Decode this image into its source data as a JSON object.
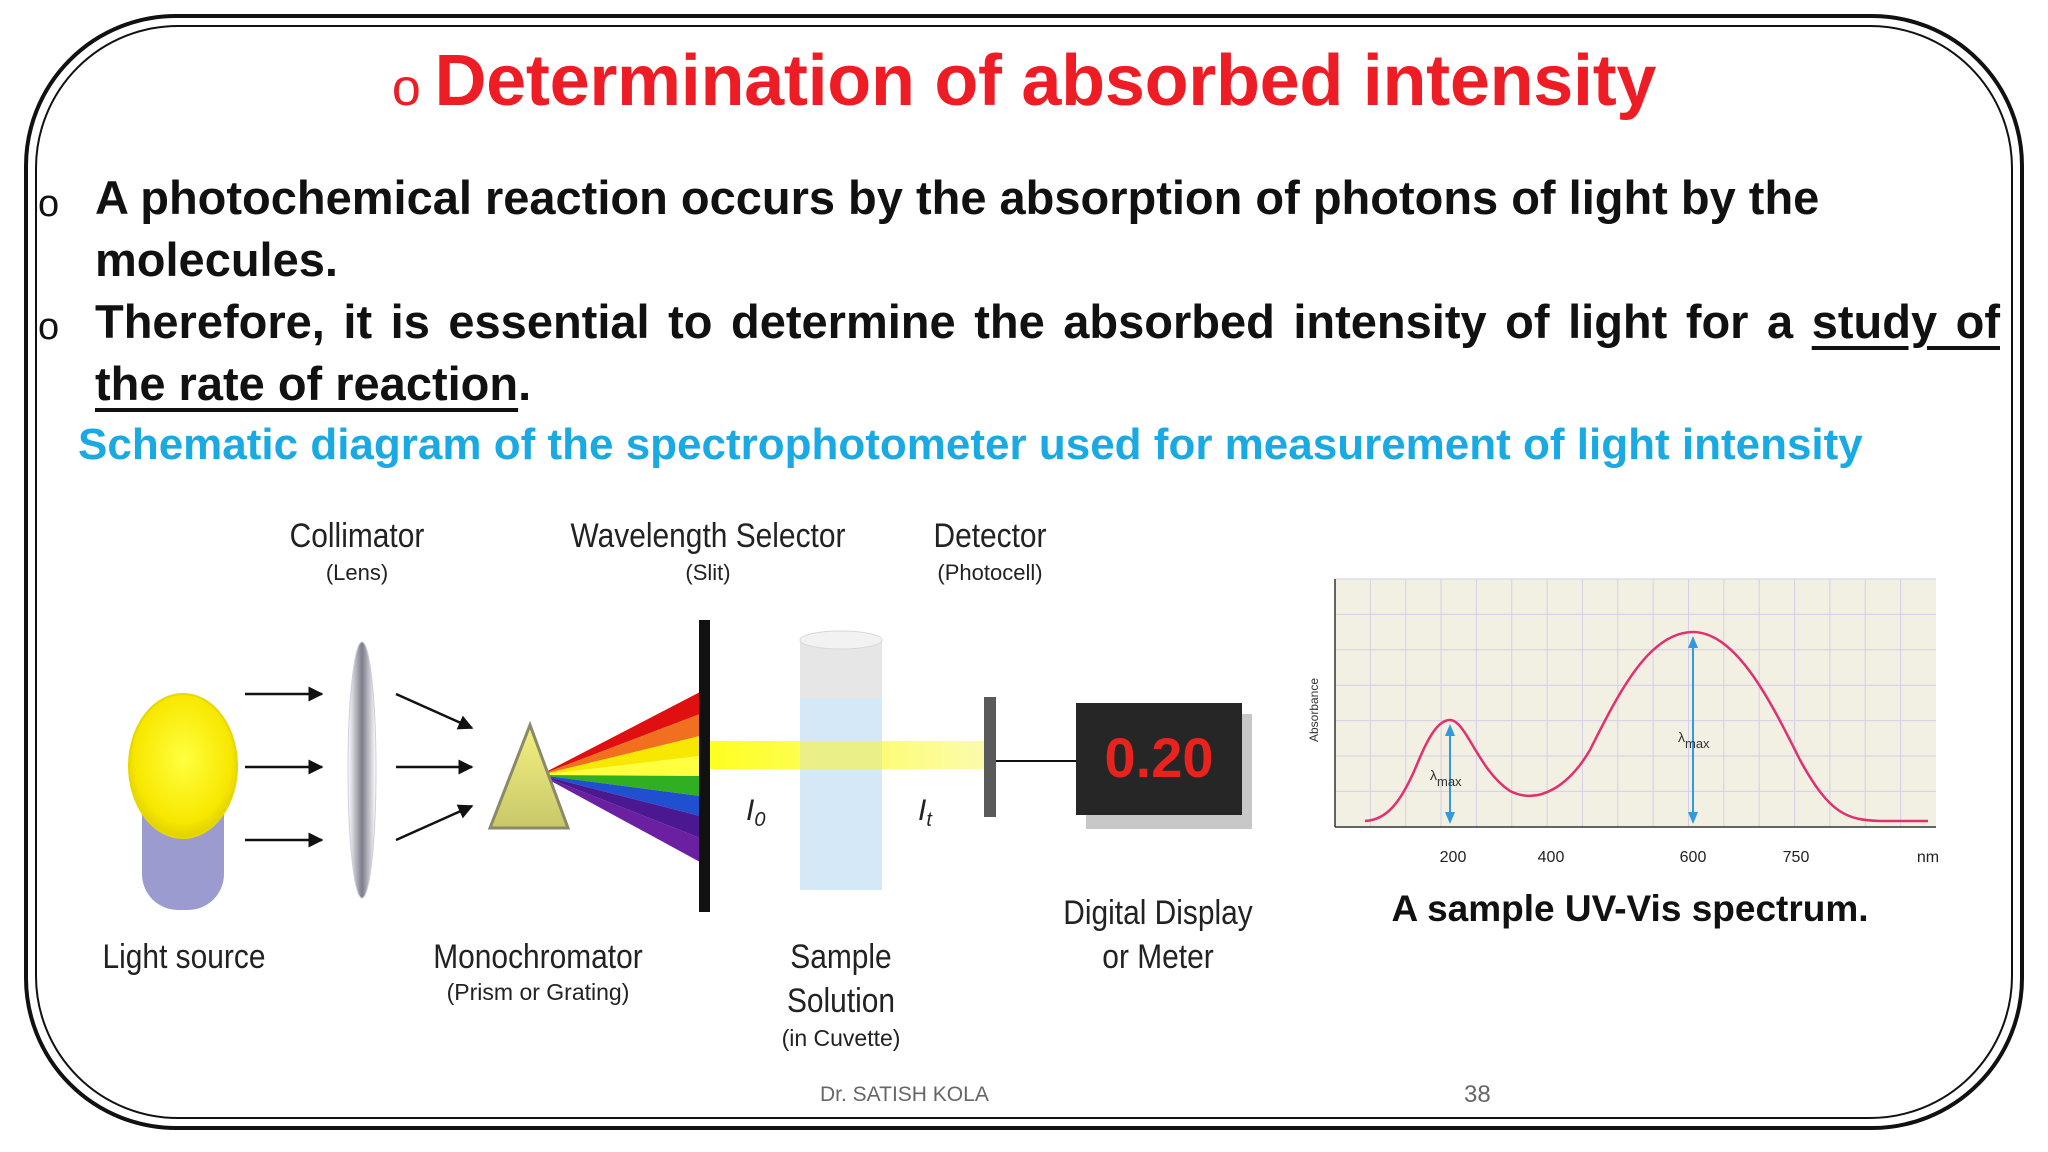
{
  "slide": {
    "bullet": "o",
    "title": "Determination of absorbed intensity",
    "para1": "A photochemical reaction occurs by the absorption of photons of light by the molecules.",
    "para2_main": "Therefore, it is essential to determine the absorbed intensity of light for a",
    "para2_underlined": "study of the rate of reaction",
    "para2_end": ".",
    "subtitle": "Schematic diagram of the spectrophotometer used for measurement of light intensity",
    "author": "Dr. SATISH KOLA",
    "page_number": "38"
  },
  "diagram": {
    "light_source": "Light source",
    "collimator": "Collimator",
    "collimator_sub": "(Lens)",
    "monochromator": "Monochromator",
    "monochromator_sub": "(Prism or Grating)",
    "wavelength_selector": "Wavelength Selector",
    "wavelength_selector_sub": "(Slit)",
    "sample": "Sample",
    "solution": "Solution",
    "sample_sub": "(in Cuvette)",
    "detector": "Detector",
    "detector_sub": "(Photocell)",
    "display_line1": "Digital Display",
    "display_line2": "or Meter",
    "display_value": "0.20",
    "i0_base": "I",
    "i0_sub": "0",
    "it_base": "I",
    "it_sub": "t"
  },
  "spectrum": {
    "ylabel": "Absorbance",
    "lambda": "λ",
    "max": "max",
    "ticks": [
      "200",
      "400",
      "600",
      "750"
    ],
    "unit": "nm",
    "caption": "A sample UV-Vis spectrum.",
    "line_color": "#e0306f",
    "arrow_color": "#3399dd"
  }
}
